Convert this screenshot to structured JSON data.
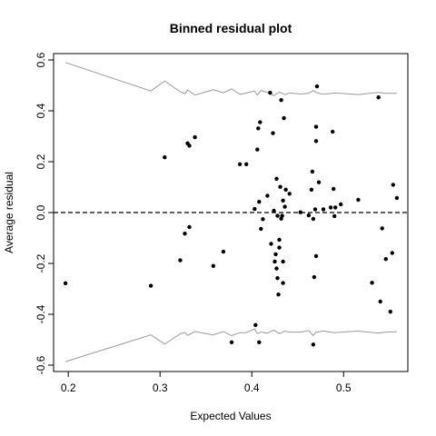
{
  "chart_data": {
    "type": "scatter",
    "title": "Binned residual plot",
    "xlabel": "Expected Values",
    "ylabel": "Average residual",
    "xlim": [
      0.184,
      0.57
    ],
    "ylim": [
      -0.625,
      0.625
    ],
    "x_ticks": [
      0.2,
      0.3,
      0.4,
      0.5
    ],
    "x_tick_labels": [
      "0.2",
      "0.3",
      "0.4",
      "0.5"
    ],
    "y_ticks": [
      -0.6,
      -0.4,
      -0.2,
      0.0,
      0.2,
      0.4,
      0.6
    ],
    "y_tick_labels": [
      "-0.6",
      "-0.4",
      "-0.2",
      "0.0",
      "0.2",
      "0.4",
      "0.6"
    ],
    "reference_line": {
      "y": 0,
      "style": "dashed",
      "color": "#000000"
    },
    "band_color": "#999999",
    "point_color": "#000000",
    "points": [
      [
        0.197,
        -0.278
      ],
      [
        0.29,
        -0.288
      ],
      [
        0.305,
        0.217
      ],
      [
        0.322,
        -0.188
      ],
      [
        0.327,
        -0.083
      ],
      [
        0.33,
        0.272
      ],
      [
        0.332,
        0.263
      ],
      [
        0.332,
        -0.057
      ],
      [
        0.338,
        0.296
      ],
      [
        0.358,
        -0.21
      ],
      [
        0.369,
        -0.154
      ],
      [
        0.378,
        -0.51
      ],
      [
        0.387,
        0.19
      ],
      [
        0.394,
        0.19
      ],
      [
        0.403,
        0.014
      ],
      [
        0.404,
        -0.442
      ],
      [
        0.406,
        0.248
      ],
      [
        0.407,
        0.331
      ],
      [
        0.408,
        0.042
      ],
      [
        0.408,
        -0.51
      ],
      [
        0.409,
        0.355
      ],
      [
        0.41,
        -0.064
      ],
      [
        0.412,
        -0.026
      ],
      [
        0.417,
        0.066
      ],
      [
        0.42,
        0.471
      ],
      [
        0.421,
        -0.123
      ],
      [
        0.423,
        0.312
      ],
      [
        0.424,
        0.007
      ],
      [
        0.425,
        -0.193
      ],
      [
        0.426,
        -0.164
      ],
      [
        0.427,
        0.133
      ],
      [
        0.427,
        -0.22
      ],
      [
        0.428,
        -0.258
      ],
      [
        0.428,
        -0.013
      ],
      [
        0.429,
        -0.322
      ],
      [
        0.43,
        -0.138
      ],
      [
        0.43,
        -0.107
      ],
      [
        0.431,
        0.101
      ],
      [
        0.432,
        0.442
      ],
      [
        0.432,
        -0.024
      ],
      [
        0.433,
        -0.013
      ],
      [
        0.434,
        0.047
      ],
      [
        0.434,
        -0.277
      ],
      [
        0.434,
        -0.193
      ],
      [
        0.435,
        0.371
      ],
      [
        0.436,
        0.023
      ],
      [
        0.437,
        0.09
      ],
      [
        0.441,
        0.074
      ],
      [
        0.453,
        0.001
      ],
      [
        0.462,
        -0.011
      ],
      [
        0.465,
        0.09
      ],
      [
        0.466,
        0.161
      ],
      [
        0.467,
        -0.519
      ],
      [
        0.467,
        -0.025
      ],
      [
        0.468,
        -0.254
      ],
      [
        0.469,
        0.013
      ],
      [
        0.47,
        -0.171
      ],
      [
        0.47,
        0.281
      ],
      [
        0.47,
        0.337
      ],
      [
        0.471,
        0.496
      ],
      [
        0.473,
        0.119
      ],
      [
        0.478,
        0.013
      ],
      [
        0.486,
        0.02
      ],
      [
        0.488,
        0.318
      ],
      [
        0.489,
        0.093
      ],
      [
        0.49,
        -0.014
      ],
      [
        0.491,
        0.02
      ],
      [
        0.497,
        0.032
      ],
      [
        0.516,
        0.05
      ],
      [
        0.531,
        -0.276
      ],
      [
        0.538,
        0.453
      ],
      [
        0.54,
        -0.35
      ],
      [
        0.542,
        -0.062
      ],
      [
        0.546,
        -0.183
      ],
      [
        0.551,
        -0.39
      ],
      [
        0.553,
        -0.159
      ],
      [
        0.554,
        0.109
      ],
      [
        0.558,
        0.057
      ]
    ],
    "upper_band": [
      [
        0.197,
        0.59
      ],
      [
        0.29,
        0.478
      ],
      [
        0.305,
        0.517
      ],
      [
        0.322,
        0.475
      ],
      [
        0.327,
        0.466
      ],
      [
        0.33,
        0.482
      ],
      [
        0.338,
        0.462
      ],
      [
        0.358,
        0.483
      ],
      [
        0.369,
        0.471
      ],
      [
        0.378,
        0.486
      ],
      [
        0.387,
        0.465
      ],
      [
        0.394,
        0.47
      ],
      [
        0.403,
        0.478
      ],
      [
        0.406,
        0.462
      ],
      [
        0.41,
        0.48
      ],
      [
        0.417,
        0.472
      ],
      [
        0.424,
        0.46
      ],
      [
        0.43,
        0.474
      ],
      [
        0.436,
        0.464
      ],
      [
        0.441,
        0.47
      ],
      [
        0.453,
        0.466
      ],
      [
        0.462,
        0.469
      ],
      [
        0.467,
        0.48
      ],
      [
        0.47,
        0.472
      ],
      [
        0.478,
        0.465
      ],
      [
        0.49,
        0.47
      ],
      [
        0.516,
        0.464
      ],
      [
        0.538,
        0.472
      ],
      [
        0.546,
        0.469
      ],
      [
        0.558,
        0.469
      ]
    ],
    "lower_band": [
      [
        0.197,
        -0.586
      ],
      [
        0.29,
        -0.481
      ],
      [
        0.305,
        -0.517
      ],
      [
        0.322,
        -0.477
      ],
      [
        0.327,
        -0.471
      ],
      [
        0.33,
        -0.483
      ],
      [
        0.338,
        -0.468
      ],
      [
        0.358,
        -0.481
      ],
      [
        0.369,
        -0.468
      ],
      [
        0.378,
        -0.484
      ],
      [
        0.387,
        -0.472
      ],
      [
        0.394,
        -0.472
      ],
      [
        0.403,
        -0.457
      ],
      [
        0.406,
        -0.476
      ],
      [
        0.41,
        -0.47
      ],
      [
        0.417,
        -0.474
      ],
      [
        0.424,
        -0.462
      ],
      [
        0.43,
        -0.476
      ],
      [
        0.436,
        -0.466
      ],
      [
        0.441,
        -0.47
      ],
      [
        0.453,
        -0.47
      ],
      [
        0.462,
        -0.464
      ],
      [
        0.467,
        -0.484
      ],
      [
        0.47,
        -0.47
      ],
      [
        0.478,
        -0.466
      ],
      [
        0.49,
        -0.472
      ],
      [
        0.516,
        -0.466
      ],
      [
        0.538,
        -0.474
      ],
      [
        0.546,
        -0.47
      ],
      [
        0.558,
        -0.469
      ]
    ]
  }
}
